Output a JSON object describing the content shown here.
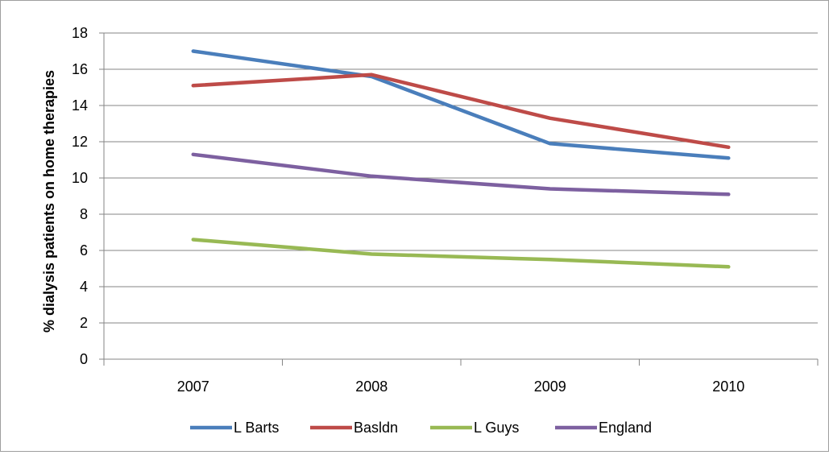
{
  "chart_data": {
    "type": "line",
    "title": "",
    "xlabel": "",
    "ylabel": "% dialysis patients on home therapies",
    "categories": [
      "2007",
      "2008",
      "2009",
      "2010"
    ],
    "ylim": [
      0,
      18
    ],
    "yticks": [
      0,
      2,
      4,
      6,
      8,
      10,
      12,
      14,
      16,
      18
    ],
    "grid": true,
    "legend_position": "bottom",
    "series": [
      {
        "name": "L Barts",
        "color": "#4a7ebb",
        "values": [
          17.0,
          15.6,
          11.9,
          11.1
        ]
      },
      {
        "name": "Basldn",
        "color": "#be4b48",
        "values": [
          15.1,
          15.7,
          13.3,
          11.7
        ]
      },
      {
        "name": "L Guys",
        "color": "#98b954",
        "values": [
          6.6,
          5.8,
          5.5,
          5.1
        ]
      },
      {
        "name": "England",
        "color": "#7d60a0",
        "values": [
          11.3,
          10.1,
          9.4,
          9.1
        ]
      }
    ]
  }
}
